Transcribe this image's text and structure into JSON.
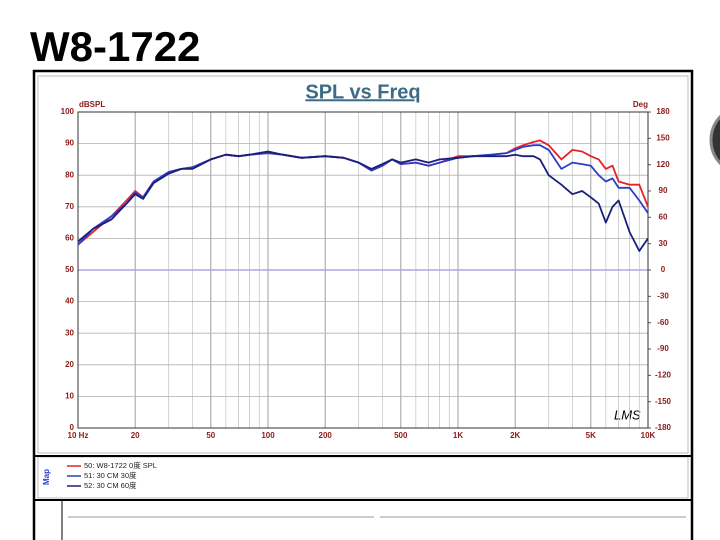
{
  "slide_title": "W8-1722",
  "chart_data": {
    "type": "line",
    "title": "SPL vs Freq",
    "y_label": "dBSPL",
    "y2_label": "Deg",
    "annotation": "LMS",
    "legend_title": "Map",
    "x_scale": "log",
    "grid": true,
    "x": [
      10,
      12,
      15,
      18,
      20,
      22,
      25,
      30,
      35,
      40,
      50,
      60,
      70,
      80,
      100,
      120,
      150,
      200,
      250,
      300,
      350,
      400,
      450,
      500,
      600,
      700,
      800,
      1000,
      1200,
      1500,
      1800,
      2000,
      2200,
      2500,
      2700,
      3000,
      3500,
      4000,
      4500,
      5000,
      5500,
      6000,
      6500,
      7000,
      8000,
      9000,
      10000
    ],
    "series": [
      {
        "name": "50: W8-1722  0度  SPL",
        "color": "#e8202a",
        "values": [
          58,
          62,
          67,
          72,
          75,
          73,
          78,
          81,
          82,
          82.5,
          85,
          86.5,
          86,
          86.5,
          87,
          86.5,
          85.5,
          86,
          85.5,
          84,
          81.5,
          83,
          85,
          83.5,
          84,
          83,
          84,
          86,
          86,
          86.5,
          87,
          88.5,
          89.5,
          90.5,
          91,
          89.5,
          85,
          88,
          87.5,
          86,
          85,
          82,
          83,
          78,
          77,
          77,
          70
        ]
      },
      {
        "name": "51: 30  CM  30度",
        "color": "#2a3fc8",
        "values": [
          58,
          63,
          67,
          71,
          74.5,
          73,
          78,
          81,
          82,
          82.5,
          85,
          86.5,
          86,
          86.5,
          87,
          86.5,
          85.5,
          86,
          85.5,
          84,
          81.5,
          83,
          85,
          83.5,
          84,
          83,
          84,
          85.5,
          86,
          86.5,
          87,
          88,
          89,
          89.5,
          89.5,
          88,
          82,
          84,
          83.5,
          83,
          80,
          78,
          79,
          76,
          76,
          72,
          68
        ]
      },
      {
        "name": "52: 30  CM  60度",
        "color": "#1a1f7a",
        "values": [
          59,
          63,
          66,
          71,
          74,
          72.5,
          77.5,
          80.5,
          82,
          82,
          85,
          86.5,
          86,
          86.5,
          87.5,
          86.5,
          85.5,
          86,
          85.5,
          84,
          82,
          83.5,
          85,
          84,
          85,
          84,
          85,
          85.5,
          86,
          86,
          86,
          86.5,
          86,
          86,
          85,
          80,
          77,
          74,
          75,
          73,
          71,
          65,
          70,
          72,
          62,
          56,
          60
        ]
      }
    ],
    "xlim": [
      10,
      10000
    ],
    "xticks": [
      {
        "value": 10,
        "label": "10 Hz"
      },
      20,
      50,
      100,
      200,
      500,
      {
        "value": 1000,
        "label": "1K"
      },
      {
        "value": 2000,
        "label": "2K"
      },
      {
        "value": 5000,
        "label": "5K"
      },
      {
        "value": 10000,
        "label": "10K"
      }
    ],
    "xminorticks": [
      30,
      40,
      60,
      70,
      80,
      90,
      300,
      400,
      600,
      700,
      800,
      900,
      3000,
      4000,
      6000,
      7000,
      8000,
      9000
    ],
    "ylim": [
      0,
      100
    ],
    "yticks": [
      0,
      10,
      20,
      30,
      40,
      50,
      60,
      70,
      80,
      90,
      100
    ],
    "y2lim": [
      -180,
      180
    ],
    "y2ticks": [
      -180,
      -150,
      -120,
      -90,
      -60,
      -30,
      0,
      30,
      60,
      90,
      120,
      150,
      180
    ]
  }
}
